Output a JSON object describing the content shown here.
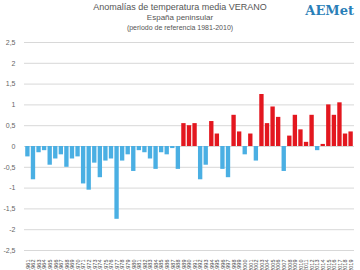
{
  "chart_data": {
    "type": "bar",
    "title": "Anomalías de temperatura media VERANO",
    "subtitle": [
      "España peninsular",
      "(periodo de referencia 1981-2010)"
    ],
    "annotations": [
      "AEMet"
    ],
    "categories": [
      "1961",
      "1962",
      "1963",
      "1964",
      "1965",
      "1966",
      "1967",
      "1968",
      "1969",
      "1970",
      "1971",
      "1972",
      "1973",
      "1974",
      "1975",
      "1976",
      "1977",
      "1978",
      "1979",
      "1980",
      "1981",
      "1982",
      "1983",
      "1984",
      "1985",
      "1986",
      "1987",
      "1988",
      "1989",
      "1990",
      "1991",
      "1992",
      "1993",
      "1994",
      "1995",
      "1996",
      "1997",
      "1998",
      "1999",
      "2000",
      "2001",
      "2002",
      "2003",
      "2004",
      "2005",
      "2006",
      "2007",
      "2008",
      "2009",
      "2010",
      "2011",
      "2012",
      "2013",
      "2014",
      "2015",
      "2016",
      "2017",
      "2018",
      "2019"
    ],
    "values": [
      -0.25,
      -0.8,
      -0.15,
      -0.1,
      -0.45,
      -0.3,
      -0.2,
      -0.5,
      -0.3,
      -0.25,
      -0.9,
      -1.05,
      -0.4,
      -0.75,
      -0.35,
      -0.3,
      -1.75,
      -0.35,
      -0.2,
      -0.6,
      -0.1,
      -0.15,
      -0.3,
      -0.55,
      -0.15,
      -0.2,
      -0.05,
      -0.55,
      0.55,
      0.5,
      0.55,
      -0.8,
      -0.45,
      0.6,
      0.3,
      -0.55,
      -0.75,
      0.75,
      0.35,
      -0.2,
      0.3,
      -0.35,
      1.25,
      0.55,
      0.95,
      0.7,
      -0.6,
      0.25,
      0.75,
      0.4,
      0.1,
      0.75,
      -0.1,
      0.05,
      1.0,
      0.75,
      1.05,
      0.3,
      0.35
    ],
    "colors": [
      "#4aafe3",
      "#4aafe3",
      "#4aafe3",
      "#4aafe3",
      "#4aafe3",
      "#4aafe3",
      "#4aafe3",
      "#4aafe3",
      "#4aafe3",
      "#4aafe3",
      "#4aafe3",
      "#4aafe3",
      "#4aafe3",
      "#4aafe3",
      "#4aafe3",
      "#4aafe3",
      "#4aafe3",
      "#4aafe3",
      "#4aafe3",
      "#4aafe3",
      "#4aafe3",
      "#4aafe3",
      "#4aafe3",
      "#4aafe3",
      "#4aafe3",
      "#4aafe3",
      "#4aafe3",
      "#4aafe3",
      "#e3171f",
      "#e3171f",
      "#e3171f",
      "#4aafe3",
      "#4aafe3",
      "#e3171f",
      "#e3171f",
      "#4aafe3",
      "#4aafe3",
      "#e3171f",
      "#e3171f",
      "#4aafe3",
      "#e3171f",
      "#4aafe3",
      "#e3171f",
      "#e3171f",
      "#e3171f",
      "#e3171f",
      "#4aafe3",
      "#e3171f",
      "#e3171f",
      "#e3171f",
      "#e3171f",
      "#e3171f",
      "#4aafe3",
      "#e3171f",
      "#e3171f",
      "#e3171f",
      "#e3171f",
      "#e3171f",
      "#e3171f"
    ],
    "ylim": [
      -2.5,
      2.5
    ],
    "yticks": [
      {
        "value": -2.5,
        "label": "-2,5"
      },
      -2,
      {
        "value": -1.5,
        "label": "-1,5"
      },
      -1,
      {
        "value": -0.5,
        "label": "-0,5"
      },
      0,
      {
        "value": 0.5,
        "label": "0,5"
      },
      1,
      {
        "value": 1.5,
        "label": "1,5"
      },
      2,
      {
        "value": 2.5,
        "label": "2,5"
      }
    ],
    "grid": true
  }
}
